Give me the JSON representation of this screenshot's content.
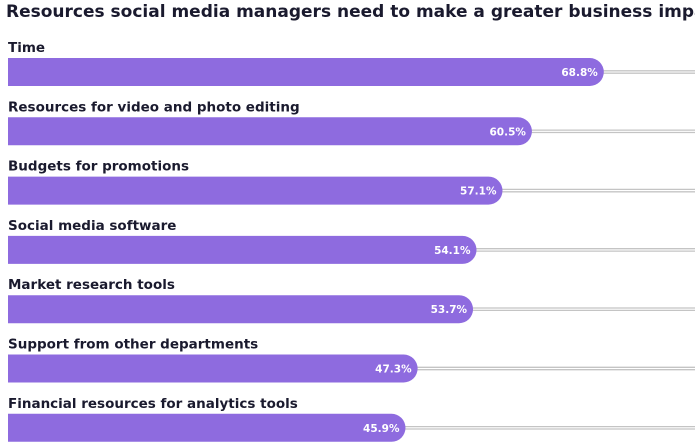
{
  "chart_data": {
    "type": "bar",
    "orientation": "horizontal",
    "title": "Resources social media managers need to make a greater business impact",
    "categories": [
      "Time",
      "Resources for video and photo editing",
      "Budgets for promotions",
      "Social media software",
      "Market research tools",
      "Support from other departments",
      "Financial resources for analytics tools"
    ],
    "values": [
      68.8,
      60.5,
      57.1,
      54.1,
      53.7,
      47.3,
      45.9
    ],
    "value_labels": [
      "68.8%",
      "60.5%",
      "57.1%",
      "54.1%",
      "53.7%",
      "47.3%",
      "45.9%"
    ],
    "unit": "%",
    "xlim": [
      0,
      80
    ],
    "grid": false,
    "legend": "none",
    "colors": {
      "bar": "#8e6bdf",
      "track": "#c4c4c4",
      "label_text": "#1a1a2e",
      "value_text": "#ffffff"
    }
  }
}
